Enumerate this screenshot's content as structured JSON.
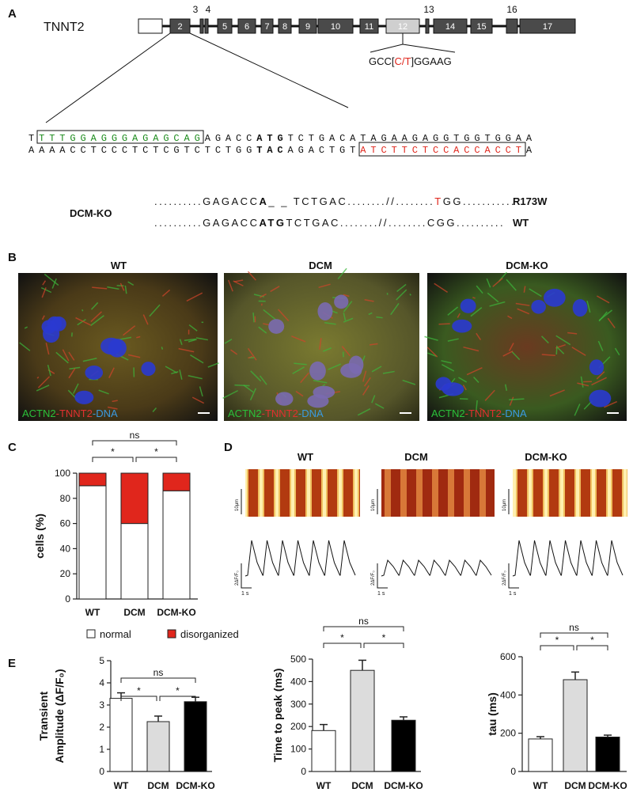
{
  "panel_labels": [
    "A",
    "B",
    "C",
    "D",
    "E"
  ],
  "gene": {
    "name": "TNNT2",
    "exons": [
      "2",
      "3",
      "4",
      "5",
      "6",
      "7",
      "8",
      "9",
      "10",
      "11",
      "12",
      "13",
      "14",
      "15",
      "16",
      "17"
    ],
    "mutation": [
      "GCC[",
      "C/T",
      "]GGAAG"
    ]
  },
  "sequence": {
    "top": [
      "T",
      "TTTGGAGGGAGAGCAG",
      "AGACC",
      "ATG",
      "TCTGACATAGAAGAGGTGGTGGAA"
    ],
    "bottom": [
      "AAAACCTCCCTCTCGTCTCTGG",
      "TAC",
      "AGACTGT",
      "ATCTTCTCCACCACCT",
      "A"
    ]
  },
  "alignment": {
    "label": "DCM-KO",
    "rows": [
      {
        "segments": [
          "..........GAGACC",
          "A",
          "_ _ TCTGAC",
          "........//........",
          "T",
          "GG..........."
        ],
        "allele": "R173W"
      },
      {
        "segments": [
          "..........GAGACC",
          "ATG",
          "TCTGAC",
          "........//........CGG.........."
        ],
        "allele": "WT"
      }
    ]
  },
  "imaging": {
    "titles": [
      "WT",
      "DCM",
      "DCM-KO"
    ],
    "caption": [
      "ACTN2",
      "-",
      "TNNT2",
      "-",
      "DNA"
    ]
  },
  "calcium": {
    "titles": [
      "WT",
      "DCM",
      "DCM-KO"
    ],
    "scale_space": "10µm",
    "scale_time": "1 s",
    "scale_signal": "2ΔF/F₀"
  },
  "chart_data": [
    {
      "type": "bar",
      "stacked": true,
      "categories": [
        "WT",
        "DCM",
        "DCM-KO"
      ],
      "ylabel": [
        "cells (%)"
      ],
      "series": [
        {
          "name": "normal",
          "color": "#ffffff",
          "values": [
            90,
            60,
            86
          ]
        },
        {
          "name": "disorganized",
          "color": "#e0261c",
          "values": [
            10,
            40,
            14
          ]
        }
      ],
      "ylim": [
        0,
        100
      ],
      "yticks": [
        0,
        20,
        40,
        60,
        80,
        100
      ],
      "annotations": [
        "ns",
        "*",
        "*"
      ]
    },
    {
      "type": "bar",
      "categories": [
        "WT",
        "DCM",
        "DCM-KO"
      ],
      "ylabel": [
        "Transient",
        "Amplitude (ΔF/F₀)"
      ],
      "values": [
        3.3,
        2.25,
        3.15
      ],
      "errors": [
        0.25,
        0.25,
        0.2
      ],
      "colors": [
        "#ffffff",
        "#dcdcdc",
        "#000000"
      ],
      "ylim": [
        0,
        5
      ],
      "yticks": [
        0,
        1,
        2,
        3,
        4,
        5
      ],
      "annotations": [
        "ns",
        "*",
        "*"
      ]
    },
    {
      "type": "bar",
      "categories": [
        "WT",
        "DCM",
        "DCM-KO"
      ],
      "ylabel": [
        "Time to peak (ms)"
      ],
      "values": [
        182,
        450,
        228
      ],
      "errors": [
        27,
        45,
        15
      ],
      "colors": [
        "#ffffff",
        "#dcdcdc",
        "#000000"
      ],
      "ylim": [
        0,
        500
      ],
      "yticks": [
        0,
        100,
        200,
        300,
        400,
        500
      ],
      "annotations": [
        "ns",
        "*",
        "*"
      ]
    },
    {
      "type": "bar",
      "categories": [
        "WT",
        "DCM",
        "DCM-KO"
      ],
      "ylabel": [
        "tau (ms)"
      ],
      "values": [
        170,
        480,
        180
      ],
      "errors": [
        12,
        40,
        10
      ],
      "colors": [
        "#ffffff",
        "#dcdcdc",
        "#000000"
      ],
      "ylim": [
        0,
        600
      ],
      "yticks": [
        0,
        200,
        400,
        600
      ],
      "annotations": [
        "ns",
        "*",
        "*"
      ]
    }
  ]
}
